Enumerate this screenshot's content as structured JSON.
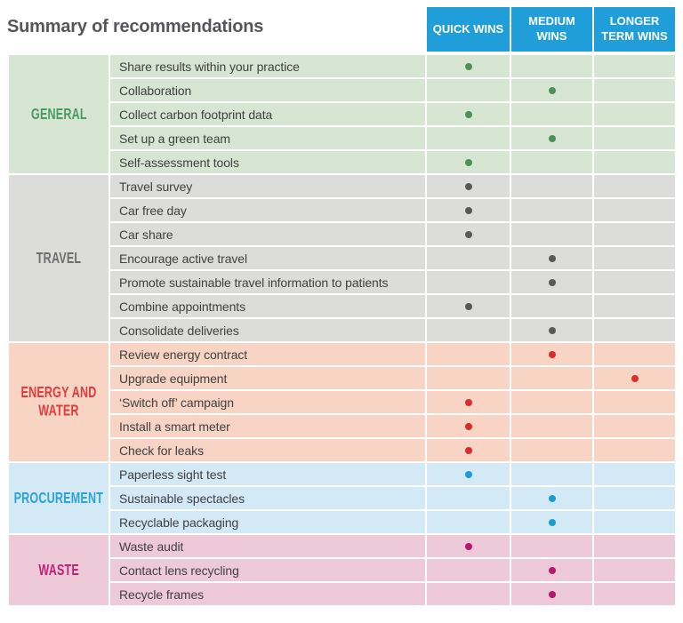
{
  "title": "Summary of recommendations",
  "colors": {
    "page_bg": "#ffffff",
    "header_bg": "#1f9ed9",
    "header_text": "#ffffff",
    "title_text": "#55565a",
    "row_text": "#414042"
  },
  "columns": [
    {
      "id": "quick",
      "label": "QUICK WINS"
    },
    {
      "id": "medium",
      "label": "MEDIUM WINS"
    },
    {
      "id": "longer",
      "label": "LONGER TERM WINS"
    }
  ],
  "sections": [
    {
      "name": "GENERAL",
      "bg": "#d7e6d3",
      "label_color": "#4a9b62",
      "dot_color": "#4c9155",
      "rows": [
        {
          "label": "Share results within your practice",
          "win": "quick"
        },
        {
          "label": "Collaboration",
          "win": "medium"
        },
        {
          "label": "Collect carbon footprint data",
          "win": "quick"
        },
        {
          "label": "Set up a green team",
          "win": "medium"
        },
        {
          "label": "Self-assessment tools",
          "win": "quick"
        }
      ]
    },
    {
      "name": "TRAVEL",
      "bg": "#dcdcdb",
      "label_color": "#6d6e70",
      "dot_color": "#58595b",
      "rows": [
        {
          "label": "Travel survey",
          "win": "quick"
        },
        {
          "label": "Car free day",
          "win": "quick"
        },
        {
          "label": "Car share",
          "win": "quick"
        },
        {
          "label": "Encourage active travel",
          "win": "medium"
        },
        {
          "label": "Promote sustainable travel information to patients",
          "win": "medium"
        },
        {
          "label": "Combine appointments",
          "win": "quick"
        },
        {
          "label": "Consolidate deliveries",
          "win": "medium"
        }
      ]
    },
    {
      "name": "ENERGY AND WATER",
      "bg": "#f8d4c5",
      "label_color": "#e23b3c",
      "dot_color": "#da2c2a",
      "rows": [
        {
          "label": "Review energy contract",
          "win": "medium"
        },
        {
          "label": "Upgrade equipment",
          "win": "longer"
        },
        {
          "label": "‘Switch off’ campaign",
          "win": "quick"
        },
        {
          "label": "Install a smart meter",
          "win": "quick"
        },
        {
          "label": "Check for leaks",
          "win": "quick"
        }
      ]
    },
    {
      "name": "PROCUREMENT",
      "bg": "#d4e9f6",
      "label_color": "#2aa4d7",
      "dot_color": "#1b9cd3",
      "rows": [
        {
          "label": "Paperless sight test",
          "win": "quick"
        },
        {
          "label": "Sustainable spectacles",
          "win": "medium"
        },
        {
          "label": "Recyclable packaging",
          "win": "medium"
        }
      ]
    },
    {
      "name": "WASTE",
      "bg": "#eec9d8",
      "label_color": "#c02277",
      "dot_color": "#b5186f",
      "rows": [
        {
          "label": "Waste audit",
          "win": "quick"
        },
        {
          "label": "Contact lens recycling",
          "win": "medium"
        },
        {
          "label": "Recycle frames",
          "win": "medium"
        }
      ]
    }
  ],
  "chart_data": {
    "type": "table",
    "title": "Summary of recommendations",
    "columns": [
      "QUICK WINS",
      "MEDIUM WINS",
      "LONGER TERM WINS"
    ],
    "row_groups": [
      "GENERAL",
      "TRAVEL",
      "ENERGY AND WATER",
      "PROCUREMENT",
      "WASTE"
    ],
    "rows": [
      [
        "GENERAL",
        "Share results within your practice",
        "QUICK WINS"
      ],
      [
        "GENERAL",
        "Collaboration",
        "MEDIUM WINS"
      ],
      [
        "GENERAL",
        "Collect carbon footprint data",
        "QUICK WINS"
      ],
      [
        "GENERAL",
        "Set up a green team",
        "MEDIUM WINS"
      ],
      [
        "GENERAL",
        "Self-assessment tools",
        "QUICK WINS"
      ],
      [
        "TRAVEL",
        "Travel survey",
        "QUICK WINS"
      ],
      [
        "TRAVEL",
        "Car free day",
        "QUICK WINS"
      ],
      [
        "TRAVEL",
        "Car share",
        "QUICK WINS"
      ],
      [
        "TRAVEL",
        "Encourage active travel",
        "MEDIUM WINS"
      ],
      [
        "TRAVEL",
        "Promote sustainable travel information to patients",
        "MEDIUM WINS"
      ],
      [
        "TRAVEL",
        "Combine appointments",
        "QUICK WINS"
      ],
      [
        "TRAVEL",
        "Consolidate deliveries",
        "MEDIUM WINS"
      ],
      [
        "ENERGY AND WATER",
        "Review energy contract",
        "MEDIUM WINS"
      ],
      [
        "ENERGY AND WATER",
        "Upgrade equipment",
        "LONGER TERM WINS"
      ],
      [
        "ENERGY AND WATER",
        "‘Switch off’ campaign",
        "QUICK WINS"
      ],
      [
        "ENERGY AND WATER",
        "Install a smart meter",
        "QUICK WINS"
      ],
      [
        "ENERGY AND WATER",
        "Check for leaks",
        "QUICK WINS"
      ],
      [
        "PROCUREMENT",
        "Paperless sight test",
        "QUICK WINS"
      ],
      [
        "PROCUREMENT",
        "Sustainable spectacles",
        "MEDIUM WINS"
      ],
      [
        "PROCUREMENT",
        "Recyclable packaging",
        "MEDIUM WINS"
      ],
      [
        "WASTE",
        "Waste audit",
        "QUICK WINS"
      ],
      [
        "WASTE",
        "Contact lens recycling",
        "MEDIUM WINS"
      ],
      [
        "WASTE",
        "Recycle frames",
        "MEDIUM WINS"
      ]
    ]
  }
}
